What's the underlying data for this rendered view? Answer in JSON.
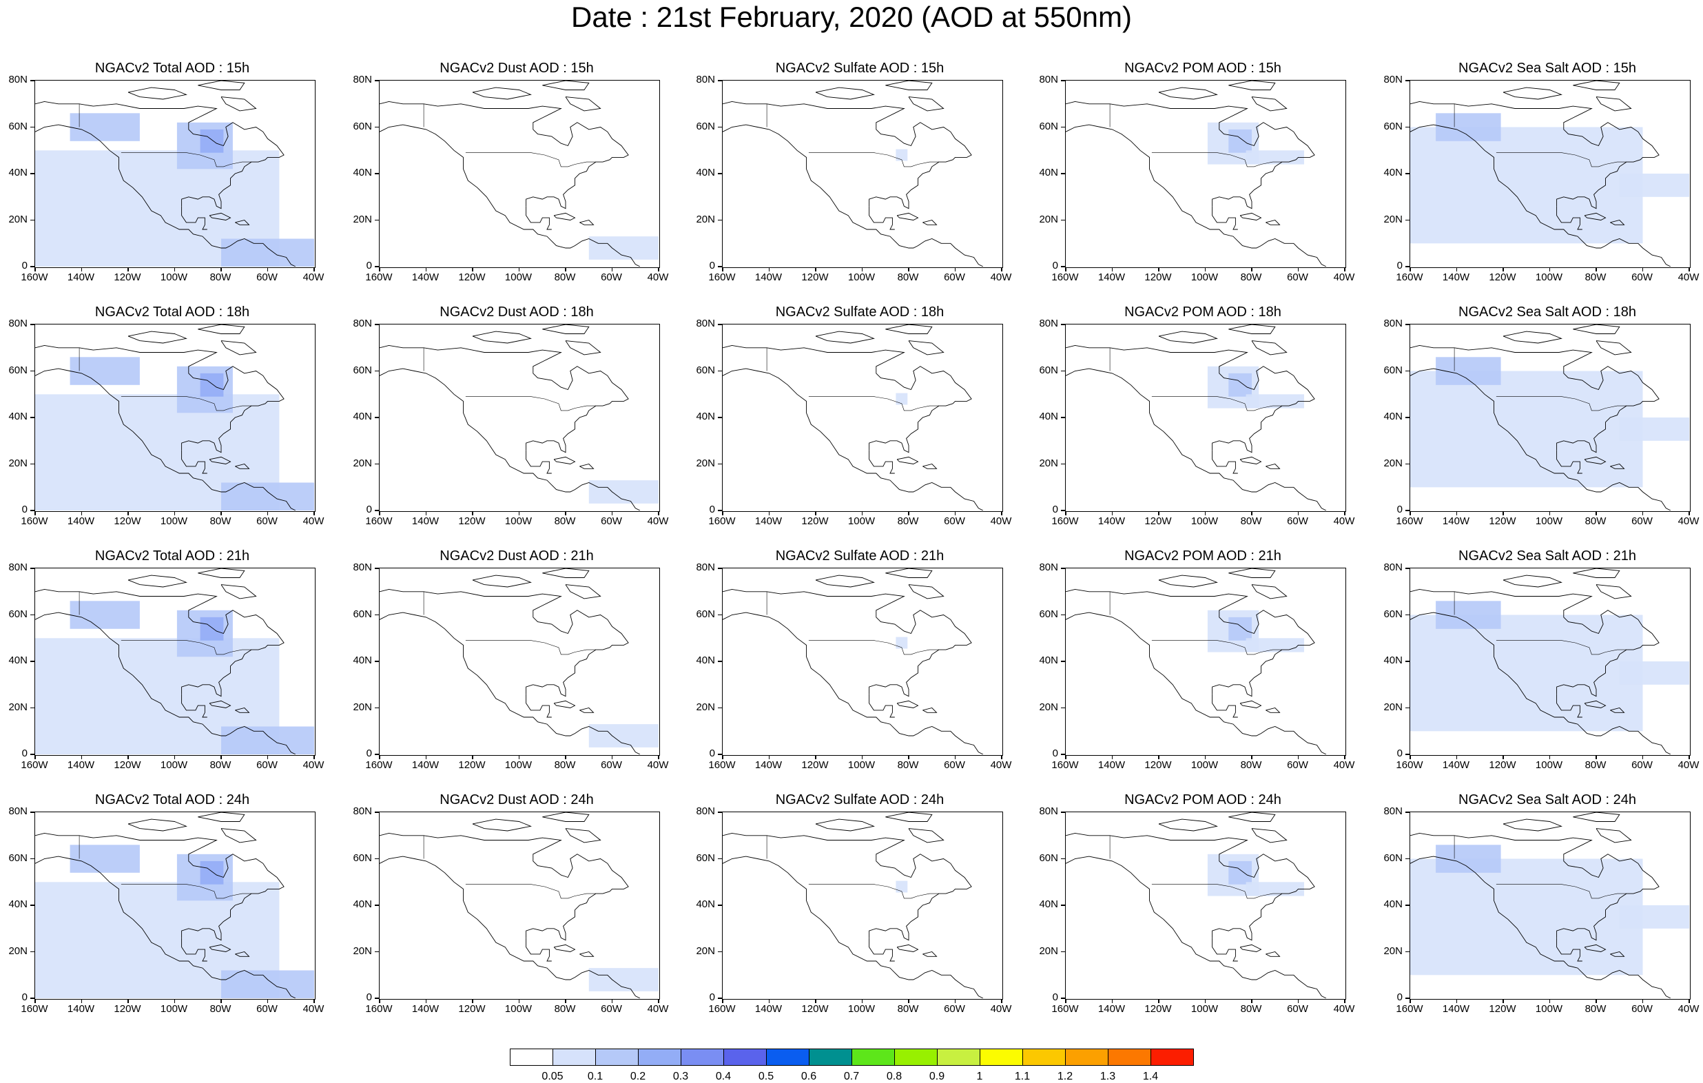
{
  "title": "Date : 21st February, 2020 (AOD at 550nm)",
  "species": [
    "Total",
    "Dust",
    "Sulfate",
    "POM",
    "Sea Salt"
  ],
  "hours": [
    "15h",
    "18h",
    "21h",
    "24h"
  ],
  "panel_titles": [
    [
      "NGACv2 Total AOD : 15h",
      "NGACv2 Dust AOD : 15h",
      "NGACv2 Sulfate AOD : 15h",
      "NGACv2 POM AOD : 15h",
      "NGACv2 Sea Salt AOD : 15h"
    ],
    [
      "NGACv2 Total AOD : 18h",
      "NGACv2 Dust AOD : 18h",
      "NGACv2 Sulfate AOD : 18h",
      "NGACv2 POM AOD : 18h",
      "NGACv2 Sea Salt AOD : 18h"
    ],
    [
      "NGACv2 Total AOD : 21h",
      "NGACv2 Dust AOD : 21h",
      "NGACv2 Sulfate AOD : 21h",
      "NGACv2 POM AOD : 21h",
      "NGACv2 Sea Salt AOD : 21h"
    ],
    [
      "NGACv2 Total AOD : 24h",
      "NGACv2 Dust AOD : 24h",
      "NGACv2 Sulfate AOD : 24h",
      "NGACv2 POM AOD : 24h",
      "NGACv2 Sea Salt  AOD : 24h"
    ]
  ],
  "axes": {
    "lon_labels": [
      "160W",
      "140W",
      "120W",
      "100W",
      "80W",
      "60W",
      "40W"
    ],
    "lat_labels": [
      "80N",
      "60N",
      "40N",
      "20N",
      "0"
    ],
    "lon_range": [
      -160,
      -40
    ],
    "lat_range": [
      0,
      80
    ]
  },
  "colorbar": {
    "labels": [
      "0.05",
      "0.1",
      "0.2",
      "0.3",
      "0.4",
      "0.5",
      "0.6",
      "0.7",
      "0.8",
      "0.9",
      "1",
      "1.1",
      "1.2",
      "1.3",
      "1.4"
    ],
    "colors": [
      "#ffffff",
      "#d6e2fb",
      "#b5c9f8",
      "#93adf6",
      "#7a8ef3",
      "#5a63ec",
      "#0a5df0",
      "#009090",
      "#5de61a",
      "#98f000",
      "#c8f040",
      "#fcfc00",
      "#fcc800",
      "#fca000",
      "#fc7800",
      "#fc1e00"
    ]
  },
  "aod_fields": {
    "Total": [
      {
        "lon": -120,
        "lat": 25,
        "lonw": 130,
        "latw": 50,
        "level": 1
      },
      {
        "lon": -87,
        "lat": 52,
        "lonw": 24,
        "latw": 20,
        "level": 2
      },
      {
        "lon": -130,
        "lat": 60,
        "lonw": 30,
        "latw": 12,
        "level": 2
      },
      {
        "lon": -60,
        "lat": 6,
        "lonw": 40,
        "latw": 12,
        "level": 2
      },
      {
        "lon": -84,
        "lat": 54,
        "lonw": 10,
        "latw": 10,
        "level": 3
      }
    ],
    "Dust": [
      {
        "lon": -55,
        "lat": 8,
        "lonw": 30,
        "latw": 10,
        "level": 1
      }
    ],
    "Sulfate": [
      {
        "lon": -83,
        "lat": 48,
        "lonw": 5,
        "latw": 5,
        "level": 1
      }
    ],
    "POM": [
      {
        "lon": -88,
        "lat": 53,
        "lonw": 22,
        "latw": 18,
        "level": 1
      },
      {
        "lon": -85,
        "lat": 54,
        "lonw": 10,
        "latw": 10,
        "level": 2
      },
      {
        "lon": -70,
        "lat": 47,
        "lonw": 25,
        "latw": 6,
        "level": 1
      }
    ],
    "Sea Salt": [
      {
        "lon": -115,
        "lat": 35,
        "lonw": 110,
        "latw": 50,
        "level": 1
      },
      {
        "lon": -135,
        "lat": 60,
        "lonw": 28,
        "latw": 12,
        "level": 2
      },
      {
        "lon": -55,
        "lat": 35,
        "lonw": 30,
        "latw": 10,
        "level": 1
      }
    ]
  }
}
